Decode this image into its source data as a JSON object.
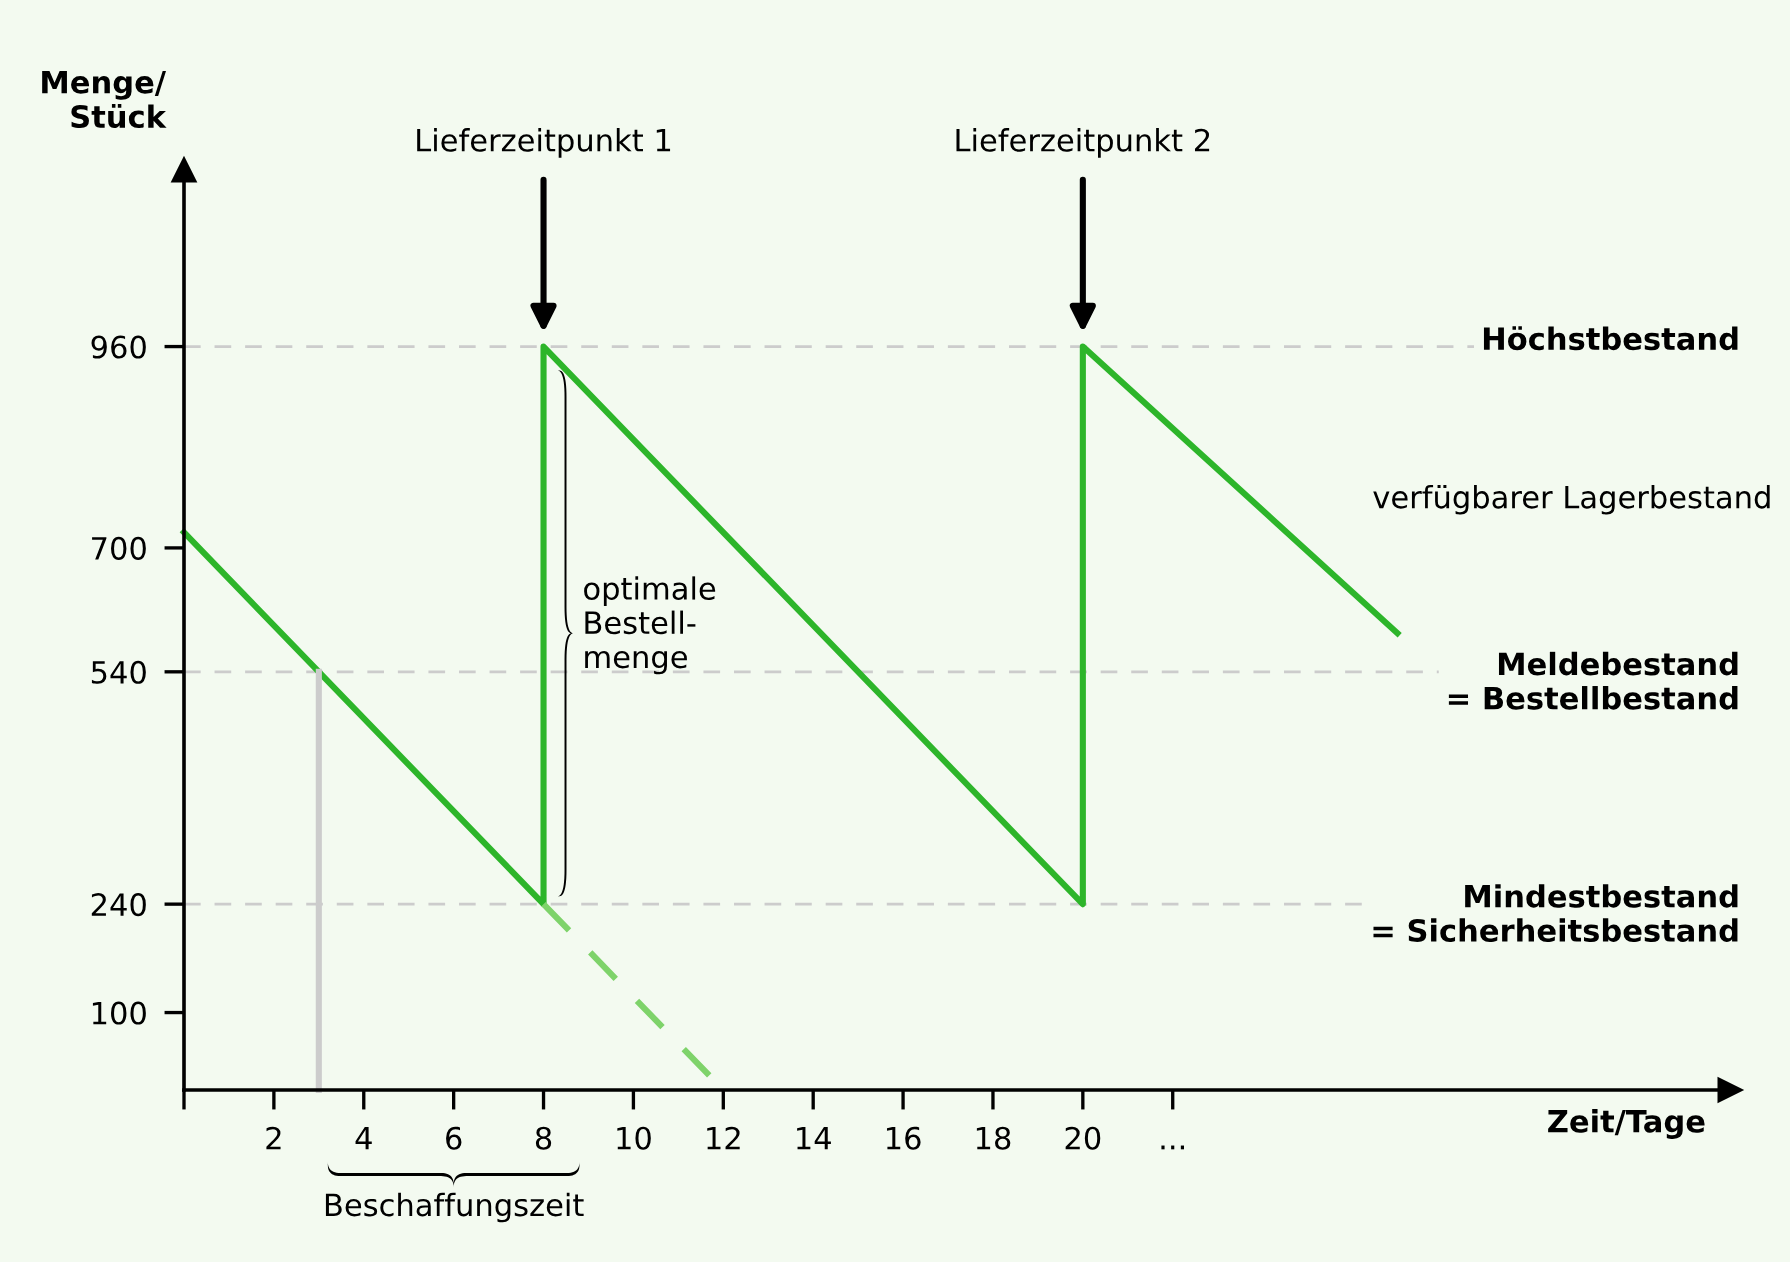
{
  "chart_data": {
    "type": "line",
    "xlabel": "Zeit/Tage",
    "ylabel": "Menge/\nStück",
    "series": [
      {
        "name": "verfügbarer Lagerbestand",
        "color": "#2db52a",
        "x": [
          0,
          8,
          8,
          20,
          20,
          27
        ],
        "values": [
          720,
          240,
          960,
          240,
          960,
          590
        ]
      },
      {
        "color": "#7ed36a",
        "x": [
          8,
          12
        ],
        "values": [
          240,
          0
        ],
        "line_style": "dashed"
      },
      {
        "color": "#cccccc",
        "x": [
          3,
          3
        ],
        "values": [
          0,
          540
        ]
      }
    ],
    "xlim": [
      0,
      34.4
    ],
    "ylim": [
      0,
      1188
    ],
    "xticks": [
      {
        "value": 0,
        "label": null
      },
      2,
      4,
      6,
      8,
      10,
      12,
      14,
      16,
      18,
      20,
      {
        "value": 22,
        "label": "..."
      }
    ],
    "yticks": [
      100,
      240,
      540,
      700,
      960
    ],
    "ref_lines": [
      {
        "axis": "y",
        "value": 960,
        "label": "Höchstbestand",
        "color": "#cccccc",
        "line_style": "dashed"
      },
      {
        "axis": "y",
        "value": 540,
        "label": "Meldebestand\n= Bestellbestand",
        "color": "#cccccc",
        "line_style": "dashed"
      },
      {
        "axis": "y",
        "value": 240,
        "label": "Mindestbestand\n= Sicherheitsbestand",
        "color": "#cccccc",
        "line_style": "dashed"
      }
    ],
    "annotations": [
      "Lieferzeitpunkt 1",
      "Lieferzeitpunkt 2",
      {
        "text": "optimale\nBestell-\nmenge",
        "x": 8,
        "y": 600
      },
      "Beschaffungszeit"
    ],
    "grid": false,
    "legend": false,
    "marker": "none",
    "line_style": "solid"
  }
}
